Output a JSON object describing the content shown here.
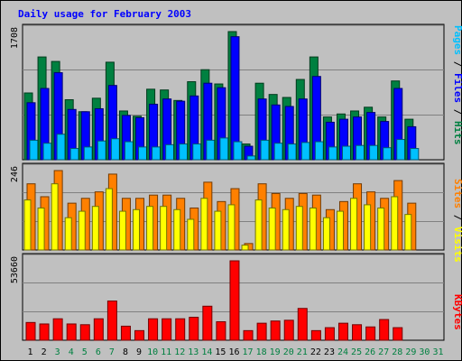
{
  "title": "Daily usage for February 2003",
  "colors": {
    "title": "#0000ff",
    "hits": "#008040",
    "files": "#0000ff",
    "pages": "#00c0ff",
    "visits": "#ff8000",
    "sites": "#ffff00",
    "kbytes": "#ff0000",
    "separator": "#000000",
    "day_weekday": "#008040",
    "day_weekend": "#000000",
    "day_future": "#008040"
  },
  "labels": {
    "pages": "Pages",
    "files": "Files",
    "hits": "Hits",
    "sites": "Sites",
    "visits": "Visits",
    "kbytes": "KBytes",
    "sep": " / "
  },
  "chart_data": [
    {
      "type": "bar",
      "panel": "hits-files-pages",
      "ylim": [
        0,
        1708
      ],
      "y_tick_label": "1708",
      "grid": true,
      "categories": [
        "1",
        "2",
        "3",
        "4",
        "5",
        "6",
        "7",
        "8",
        "9",
        "10",
        "11",
        "12",
        "13",
        "14",
        "15",
        "16",
        "17",
        "18",
        "19",
        "20",
        "21",
        "22",
        "23",
        "24",
        "25",
        "26",
        "27",
        "28",
        "29",
        "30",
        "31"
      ],
      "series": [
        {
          "name": "Hits",
          "values": [
            890,
            1370,
            1310,
            800,
            640,
            820,
            1300,
            650,
            580,
            940,
            930,
            790,
            1040,
            1200,
            1010,
            1708,
            210,
            1020,
            870,
            830,
            1070,
            1370,
            570,
            610,
            650,
            700,
            570,
            1050,
            540,
            0,
            0
          ]
        },
        {
          "name": "Files",
          "values": [
            760,
            950,
            1160,
            670,
            640,
            680,
            990,
            590,
            560,
            740,
            810,
            780,
            850,
            1020,
            960,
            1640,
            180,
            810,
            730,
            710,
            810,
            1110,
            500,
            540,
            570,
            630,
            510,
            950,
            440,
            0,
            0
          ]
        },
        {
          "name": "Pages",
          "values": [
            260,
            220,
            340,
            150,
            170,
            250,
            280,
            240,
            170,
            170,
            200,
            210,
            210,
            260,
            290,
            240,
            50,
            260,
            220,
            210,
            230,
            240,
            170,
            180,
            190,
            190,
            160,
            270,
            150,
            0,
            0
          ]
        }
      ]
    },
    {
      "type": "bar",
      "panel": "visits-sites",
      "ylim": [
        0,
        246
      ],
      "y_tick_label": "246",
      "grid": true,
      "categories": [
        "1",
        "2",
        "3",
        "4",
        "5",
        "6",
        "7",
        "8",
        "9",
        "10",
        "11",
        "12",
        "13",
        "14",
        "15",
        "16",
        "17",
        "18",
        "19",
        "20",
        "21",
        "22",
        "23",
        "24",
        "25",
        "26",
        "27",
        "28",
        "29",
        "30",
        "31"
      ],
      "series": [
        {
          "name": "Visits",
          "values": [
            205,
            165,
            246,
            145,
            160,
            180,
            235,
            160,
            160,
            170,
            170,
            160,
            130,
            210,
            150,
            190,
            20,
            205,
            175,
            160,
            175,
            170,
            125,
            150,
            205,
            180,
            160,
            215,
            145,
            0,
            0
          ]
        },
        {
          "name": "Sites",
          "values": [
            155,
            130,
            205,
            100,
            120,
            135,
            190,
            120,
            125,
            135,
            135,
            125,
            95,
            160,
            120,
            140,
            15,
            155,
            130,
            125,
            135,
            130,
            100,
            120,
            160,
            140,
            130,
            165,
            110,
            0,
            0
          ]
        }
      ]
    },
    {
      "type": "bar",
      "panel": "kbytes",
      "ylim": [
        0,
        53660
      ],
      "y_tick_label": "53660",
      "grid": true,
      "categories": [
        "1",
        "2",
        "3",
        "4",
        "5",
        "6",
        "7",
        "8",
        "9",
        "10",
        "11",
        "12",
        "13",
        "14",
        "15",
        "16",
        "17",
        "18",
        "19",
        "20",
        "21",
        "22",
        "23",
        "24",
        "25",
        "26",
        "27",
        "28",
        "29",
        "30",
        "31"
      ],
      "series": [
        {
          "name": "KBytes",
          "values": [
            12000,
            11000,
            14500,
            11000,
            10500,
            14500,
            26500,
            9500,
            6500,
            14500,
            14500,
            14500,
            15500,
            23000,
            12500,
            53660,
            6500,
            11500,
            13000,
            13500,
            21500,
            6500,
            8500,
            11500,
            10500,
            9000,
            14000,
            8500,
            0,
            0,
            0
          ]
        }
      ]
    }
  ],
  "day_classes": [
    "weekend",
    "weekend",
    "weekday",
    "weekday",
    "weekday",
    "weekday",
    "weekday",
    "weekend",
    "weekend",
    "weekday",
    "weekday",
    "weekday",
    "weekday",
    "weekday",
    "weekend",
    "weekend",
    "weekday",
    "weekday",
    "weekday",
    "weekday",
    "weekday",
    "weekend",
    "weekend",
    "weekday",
    "weekday",
    "weekday",
    "weekday",
    "weekday",
    "future",
    "future",
    "future"
  ]
}
